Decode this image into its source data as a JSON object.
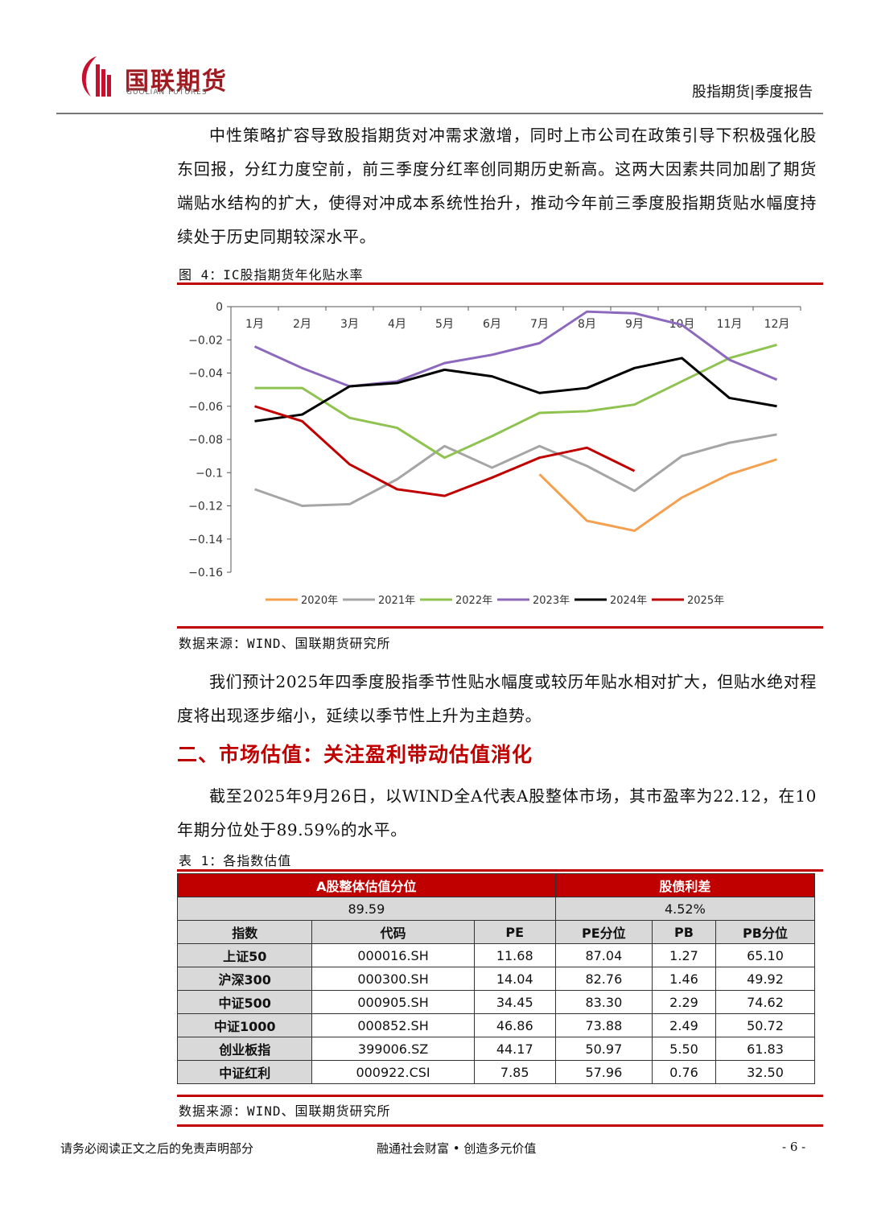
{
  "header": {
    "logo_cn": "国联期货",
    "logo_en": "GUOLIAN FUTURES",
    "right": "股指期货|季度报告"
  },
  "paragraphs": [
    "中性策略扩容导致股指期货对冲需求激增，同时上市公司在政策引导下积极强化股东回报，分红力度空前，前三季度分红率创同期历史新高。这两大因素共同加剧了期货端贴水结构的扩大，使得对冲成本系统性抬升，推动今年前三季度股指期货贴水幅度持续处于历史同期较深水平。",
    "我们预计2025年四季度股指季节性贴水幅度或较历年贴水相对扩大，但贴水绝对程度将出现逐步缩小，延续以季节性上升为主趋势。",
    "截至2025年9月26日，以WIND全A代表A股整体市场，其市盈率为22.12，在10年期分位处于89.59%的水平。"
  ],
  "figure_caption": "图 4：IC股指期货年化贴水率",
  "figure_source": "数据来源：WIND、国联期货研究所",
  "section_heading": "二、市场估值：关注盈利带动估值消化",
  "chart_data": {
    "type": "line",
    "categories": [
      "1月",
      "2月",
      "3月",
      "4月",
      "5月",
      "6月",
      "7月",
      "8月",
      "9月",
      "10月",
      "11月",
      "12月"
    ],
    "ylim": [
      -0.16,
      0
    ],
    "yticks": [
      {
        "value": 0,
        "label": "0"
      },
      {
        "value": -0.02,
        "label": "−0.02"
      },
      {
        "value": -0.04,
        "label": "−0.04"
      },
      {
        "value": -0.06,
        "label": "−0.06"
      },
      {
        "value": -0.08,
        "label": "−0.08"
      },
      {
        "value": -0.1,
        "label": "−0.1"
      },
      {
        "value": -0.12,
        "label": "−0.12"
      },
      {
        "value": -0.14,
        "label": "−0.14"
      },
      {
        "value": -0.16,
        "label": "−0.16"
      }
    ],
    "legend": "bottom",
    "series": [
      {
        "name": "2020年",
        "color": "#f4a04e",
        "values": [
          null,
          null,
          null,
          null,
          null,
          null,
          -0.101,
          -0.129,
          -0.135,
          -0.115,
          -0.101,
          -0.092
        ]
      },
      {
        "name": "2021年",
        "color": "#a5a5a5",
        "values": [
          -0.11,
          -0.12,
          -0.119,
          -0.104,
          -0.084,
          -0.097,
          -0.084,
          -0.096,
          -0.111,
          -0.09,
          -0.082,
          -0.077
        ]
      },
      {
        "name": "2022年",
        "color": "#8fc350",
        "values": [
          -0.049,
          -0.049,
          -0.067,
          -0.073,
          -0.091,
          -0.078,
          -0.064,
          -0.063,
          -0.059,
          -0.045,
          -0.031,
          -0.023
        ]
      },
      {
        "name": "2023年",
        "color": "#8c69bd",
        "values": [
          -0.024,
          -0.037,
          -0.048,
          -0.045,
          -0.034,
          -0.029,
          -0.022,
          -0.003,
          -0.004,
          -0.011,
          -0.032,
          -0.044
        ]
      },
      {
        "name": "2024年",
        "color": "#000000",
        "values": [
          -0.069,
          -0.065,
          -0.048,
          -0.046,
          -0.038,
          -0.042,
          -0.052,
          -0.049,
          -0.037,
          -0.031,
          -0.055,
          -0.06
        ]
      },
      {
        "name": "2025年",
        "color": "#c00000",
        "values": [
          -0.06,
          -0.069,
          -0.095,
          -0.11,
          -0.114,
          -0.103,
          -0.091,
          -0.085,
          -0.099,
          null,
          null,
          null
        ]
      }
    ]
  },
  "table_caption": "表 1：各指数估值",
  "table": {
    "top_headers": [
      "A股整体估值分位",
      "股债利差"
    ],
    "top_values": [
      "89.59",
      "4.52%"
    ],
    "columns": [
      "指数",
      "代码",
      "PE",
      "PE分位",
      "PB",
      "PB分位"
    ],
    "rows": [
      [
        "上证50",
        "000016.SH",
        "11.68",
        "87.04",
        "1.27",
        "65.10"
      ],
      [
        "沪深300",
        "000300.SH",
        "14.04",
        "82.76",
        "1.46",
        "49.92"
      ],
      [
        "中证500",
        "000905.SH",
        "34.45",
        "83.30",
        "2.29",
        "74.62"
      ],
      [
        "中证1000",
        "000852.SH",
        "46.86",
        "73.88",
        "2.49",
        "50.72"
      ],
      [
        "创业板指",
        "399006.SZ",
        "44.17",
        "50.97",
        "5.50",
        "61.83"
      ],
      [
        "中证红利",
        "000922.CSI",
        "7.85",
        "57.96",
        "0.76",
        "32.50"
      ]
    ]
  },
  "table_source": "数据来源：WIND、国联期货研究所",
  "footer": {
    "left": "请务必阅读正文之后的免责声明部分",
    "center": "融通社会财富 • 创造多元价值",
    "right": "- 6 -"
  }
}
